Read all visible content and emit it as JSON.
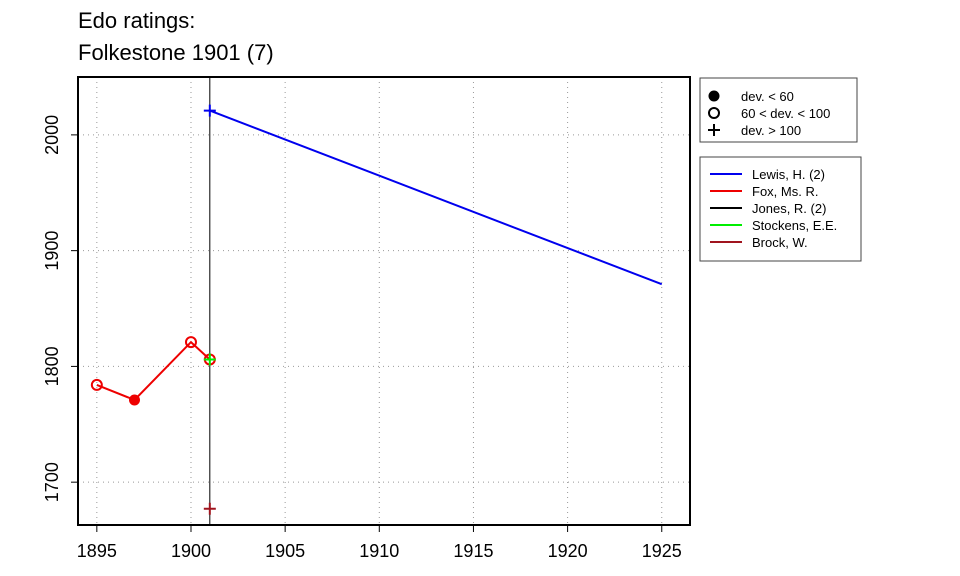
{
  "title_line1": "Edo ratings:",
  "title_line2": "Folkestone 1901 (7)",
  "chart_data": {
    "type": "line",
    "title": "Edo ratings:\nFolkestone 1901 (7)",
    "xlabel": "",
    "ylabel": "",
    "xlim": [
      1894,
      1926.5
    ],
    "ylim": [
      1663,
      2050
    ],
    "x_ticks": [
      1895,
      1900,
      1905,
      1910,
      1915,
      1920,
      1925
    ],
    "y_ticks": [
      1700,
      1800,
      1900,
      2000
    ],
    "grid": true,
    "event_line_x": 1901,
    "point_legend": [
      {
        "marker": "filled-circle",
        "label": "dev. < 60"
      },
      {
        "marker": "open-circle",
        "label": "60 < dev. < 100"
      },
      {
        "marker": "plus",
        "label": "dev. > 100"
      }
    ],
    "series": [
      {
        "name": "Lewis, H. (2)",
        "color": "#0000ee",
        "points": [
          {
            "x": 1901,
            "y": 2021,
            "marker": "plus"
          },
          {
            "x": 1925,
            "y": 1871,
            "marker": "none"
          }
        ]
      },
      {
        "name": "Fox, Ms. R.",
        "color": "#ee0000",
        "points": [
          {
            "x": 1895,
            "y": 1784,
            "marker": "open-circle"
          },
          {
            "x": 1897,
            "y": 1771,
            "marker": "filled-circle"
          },
          {
            "x": 1900,
            "y": 1821,
            "marker": "open-circle"
          },
          {
            "x": 1901,
            "y": 1806,
            "marker": "open-circle"
          }
        ]
      },
      {
        "name": "Jones, R. (2)",
        "color": "#000000",
        "points": []
      },
      {
        "name": "Stockens, E.E.",
        "color": "#00ee00",
        "points": [
          {
            "x": 1901,
            "y": 1806,
            "marker": "plus"
          }
        ]
      },
      {
        "name": "Brock, W.",
        "color": "#a0141e",
        "points": [
          {
            "x": 1901,
            "y": 1677,
            "marker": "plus"
          }
        ]
      }
    ]
  }
}
